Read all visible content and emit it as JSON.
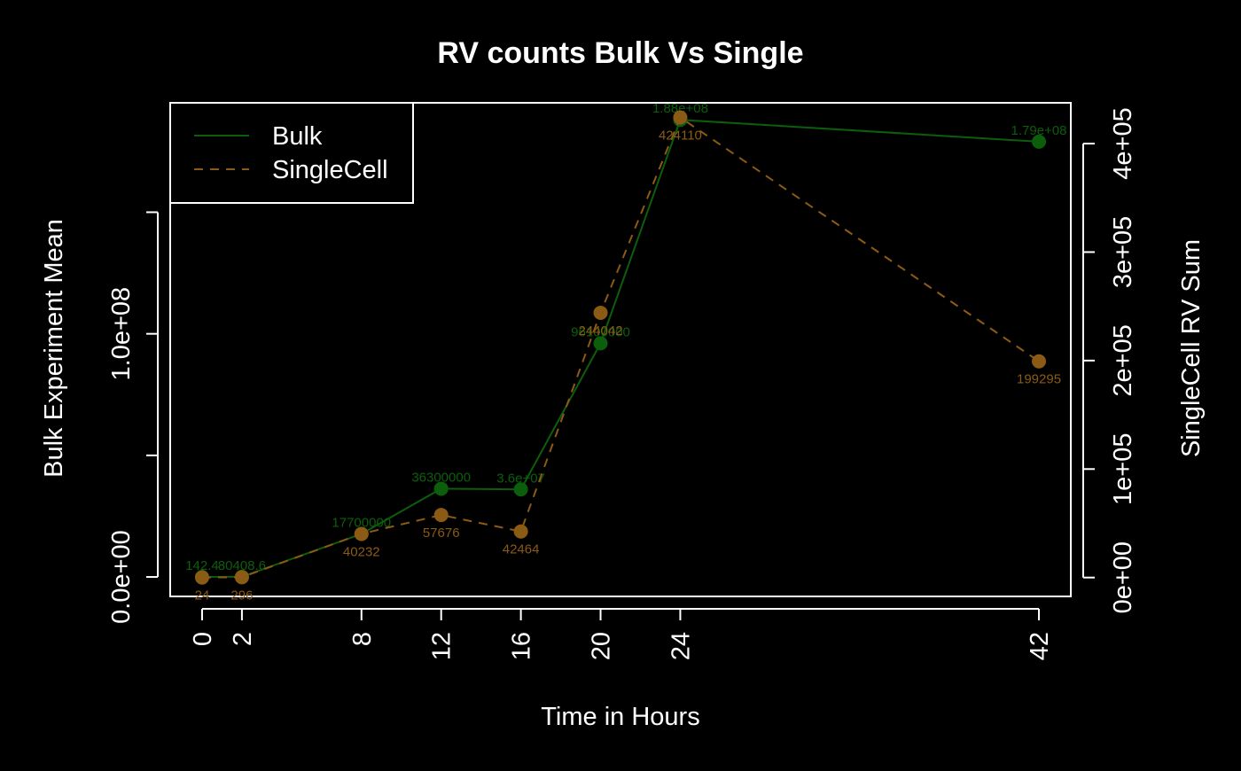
{
  "chart_data": {
    "type": "line",
    "title": "RV counts Bulk Vs Single",
    "xlabel": "Time in Hours",
    "ylabel_left": "Bulk Experiment Mean",
    "ylabel_right": "SingleCell RV Sum",
    "x": [
      0,
      2,
      8,
      12,
      16,
      20,
      24,
      42
    ],
    "xlim": [
      -1.6,
      43.6
    ],
    "ylim_left": [
      -8000000,
      195000000
    ],
    "ylim_right": [
      -17400,
      437600
    ],
    "x_ticks": [
      {
        "value": 0,
        "label": "0"
      },
      {
        "value": 2,
        "label": "2"
      },
      {
        "value": 8,
        "label": "8"
      },
      {
        "value": 12,
        "label": "12"
      },
      {
        "value": 16,
        "label": "16"
      },
      {
        "value": 20,
        "label": "20"
      },
      {
        "value": 24,
        "label": "24"
      },
      {
        "value": 42,
        "label": "42"
      }
    ],
    "y_left_ticks": [
      {
        "value": 0,
        "label": "0.0e+00"
      },
      {
        "value": 50000000,
        "label": ""
      },
      {
        "value": 100000000,
        "label": "1.0e+08"
      },
      {
        "value": 150000000,
        "label": ""
      }
    ],
    "y_right_ticks": [
      {
        "value": 0,
        "label": "0e+00"
      },
      {
        "value": 100000,
        "label": "1e+05"
      },
      {
        "value": 200000,
        "label": "2e+05"
      },
      {
        "value": 300000,
        "label": "3e+05"
      },
      {
        "value": 400000,
        "label": "4e+05"
      }
    ],
    "series": [
      {
        "name": "Bulk",
        "axis": "left",
        "color": "#0c5e0c",
        "line": "solid",
        "values": [
          142.4,
          80408.6,
          17700000,
          36300000,
          36000000,
          96100000,
          188000000,
          179000000
        ],
        "labels": [
          "142.4",
          "80408.6",
          "17700000",
          "36300000",
          "3.6e+07",
          "96100000",
          "1.88e+08",
          "1.79e+08"
        ],
        "label_position": "above"
      },
      {
        "name": "SingleCell",
        "axis": "right",
        "color": "#8b5a14",
        "line": "dashed",
        "values": [
          24,
          296,
          40232,
          57676,
          42464,
          244042,
          424110,
          199295
        ],
        "labels": [
          "24",
          "296",
          "40232",
          "57676",
          "42464",
          "244042",
          "424110",
          "199295"
        ],
        "label_position": "below"
      }
    ],
    "legend_position": "top-left",
    "grid": false,
    "colors": {
      "background": "#000000",
      "foreground": "#ffffff"
    }
  }
}
